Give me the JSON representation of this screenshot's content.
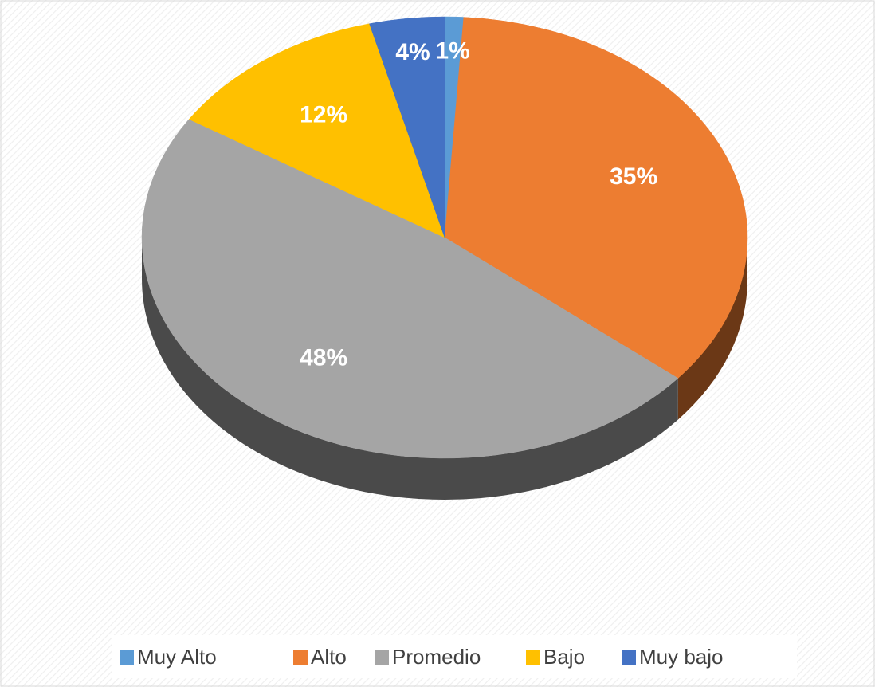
{
  "chart_data": {
    "type": "pie",
    "categories": [
      "Muy Alto",
      "Alto",
      "Promedio",
      "Bajo",
      "Muy bajo"
    ],
    "values": [
      1,
      35,
      48,
      12,
      4
    ],
    "value_labels": [
      "1%",
      "35%",
      "48%",
      "12%",
      "4%"
    ],
    "colors": [
      "#5b9bd5",
      "#ed7d31",
      "#a5a5a5",
      "#ffc000",
      "#4472c4"
    ],
    "legend": "bottom"
  }
}
